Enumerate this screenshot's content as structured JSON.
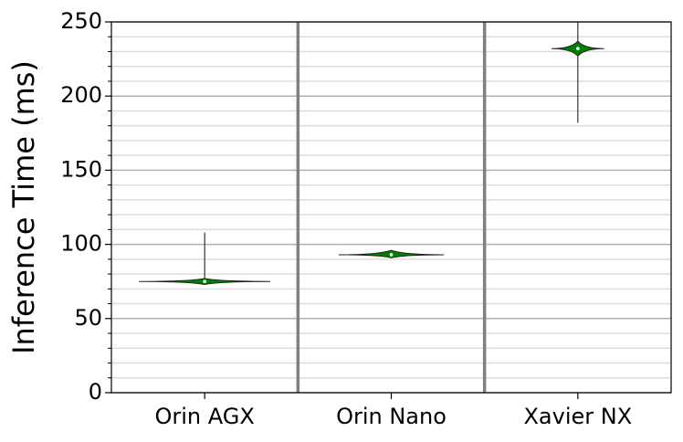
{
  "chart_data": {
    "type": "violin",
    "y_label": "Inference Time (ms)",
    "categories": [
      "Orin AGX",
      "Orin Nano",
      "Xavier NX"
    ],
    "series": [
      {
        "color": "#008000",
        "stats": [
          {
            "min": 74,
            "lower": 73,
            "median": 75,
            "upper": 77,
            "max": 108
          },
          {
            "min": 91,
            "lower": 91,
            "median": 93,
            "upper": 96,
            "max": 96
          },
          {
            "min": 182,
            "lower": 227,
            "median": 232,
            "upper": 237,
            "max": 250
          }
        ]
      }
    ],
    "ylim": [
      0,
      250
    ],
    "yticks": [
      0,
      50,
      100,
      150,
      200,
      250
    ],
    "minor_yticks": [
      10,
      20,
      30,
      40,
      60,
      70,
      80,
      90,
      110,
      120,
      130,
      140,
      160,
      170,
      180,
      190,
      210,
      220,
      230,
      240
    ],
    "grid": true
  }
}
